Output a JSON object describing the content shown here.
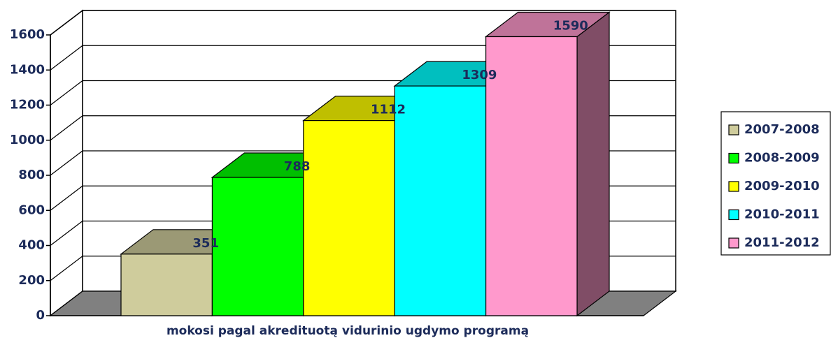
{
  "chart_data": {
    "type": "bar3d",
    "xlabel": "mokosi pagal akredituotą vidurinio ugdymo programą",
    "ylim": [
      0,
      1600
    ],
    "yticks": [
      0,
      200,
      400,
      600,
      800,
      1000,
      1200,
      1400,
      1600
    ],
    "grid": true,
    "legend": "right",
    "series": [
      {
        "name": "2007-2008",
        "color": "#cfcc9c",
        "values": [
          351
        ]
      },
      {
        "name": "2008-2009",
        "color": "#00ff00",
        "values": [
          788
        ]
      },
      {
        "name": "2009-2010",
        "color": "#ffff00",
        "values": [
          1112
        ]
      },
      {
        "name": "2010-2011",
        "color": "#00ffff",
        "values": [
          1309
        ]
      },
      {
        "name": "2011-2012",
        "color": "#ff99cc",
        "values": [
          1590
        ]
      }
    ]
  }
}
